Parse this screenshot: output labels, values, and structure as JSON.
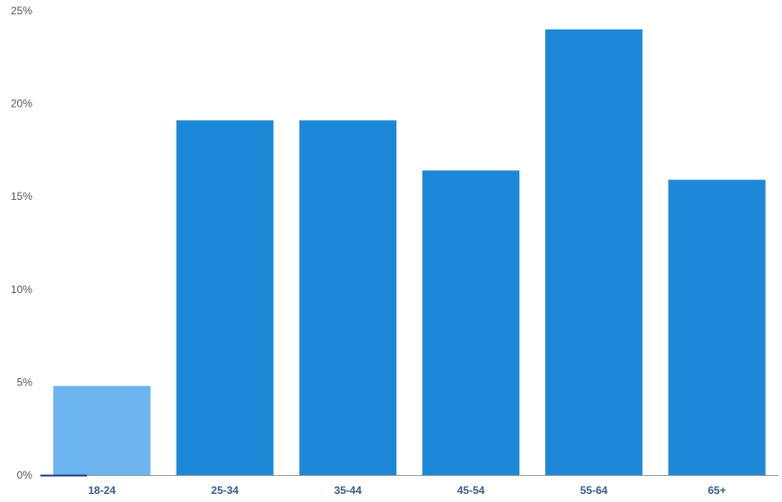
{
  "chart_data": {
    "type": "bar",
    "title": "",
    "xlabel": "",
    "ylabel": "",
    "ylim": [
      0,
      25
    ],
    "yticks": [
      0,
      5,
      10,
      15,
      20,
      25
    ],
    "ytick_labels": [
      "0%",
      "5%",
      "10%",
      "15%",
      "20%",
      "25%"
    ],
    "grid": false,
    "categories": [
      "18-24",
      "25-34",
      "35-44",
      "45-54",
      "55-64",
      "65+"
    ],
    "values": [
      4.8,
      19.1,
      19.1,
      16.4,
      24.0,
      15.9
    ],
    "colors": [
      "#6cb4f0",
      "#1e88d8",
      "#1e88d8",
      "#1e88d8",
      "#1e88d8",
      "#1e88d8"
    ]
  },
  "colors": {
    "axis": "#9a9a9a",
    "axis_highlight": "#1c3f73"
  }
}
